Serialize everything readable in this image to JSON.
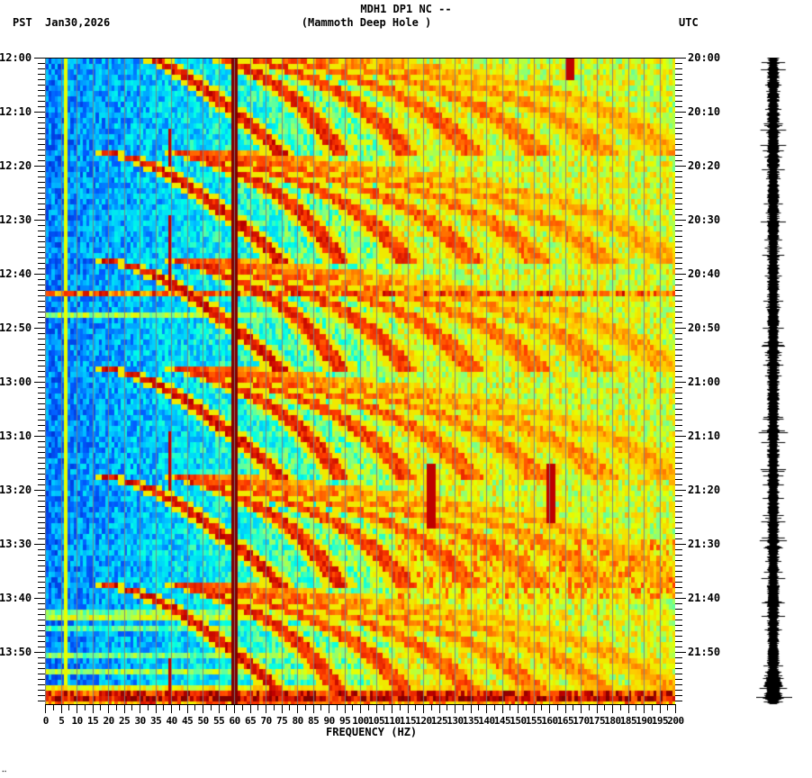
{
  "header": {
    "station_line": "MDH1 DP1 NC --",
    "site_line": "(Mammoth Deep Hole )",
    "left_timezone": "PST",
    "date": "Jan30,2026",
    "right_timezone": "UTC"
  },
  "footer_mark": "‥",
  "colors": {
    "low": "#0050ff",
    "mid_low": "#00e0ff",
    "mid": "#80ff80",
    "mid_high": "#ffff00",
    "high": "#ff6000",
    "peak": "#800000",
    "gridline": "#808080",
    "trace": "#000000"
  },
  "chart_data": {
    "type": "heatmap",
    "title": "MDH1 DP1 NC -- (Mammoth Deep Hole )",
    "subtitle": "Jan30,2026",
    "xlabel": "FREQUENCY (HZ)",
    "ylabel_left": "PST",
    "ylabel_right": "UTC",
    "x_range": [
      0,
      200
    ],
    "x_ticks": [
      0,
      5,
      10,
      15,
      20,
      25,
      30,
      35,
      40,
      45,
      50,
      55,
      60,
      65,
      70,
      75,
      80,
      85,
      90,
      95,
      100,
      105,
      110,
      115,
      120,
      125,
      130,
      135,
      140,
      145,
      150,
      155,
      160,
      165,
      170,
      175,
      180,
      185,
      190,
      195,
      200
    ],
    "y_ticks_left": [
      "12:00",
      "12:10",
      "12:20",
      "12:30",
      "12:40",
      "12:50",
      "13:00",
      "13:10",
      "13:20",
      "13:30",
      "13:40",
      "13:50"
    ],
    "y_ticks_right": [
      "20:00",
      "20:10",
      "20:20",
      "20:30",
      "20:40",
      "20:50",
      "21:00",
      "21:10",
      "21:20",
      "21:30",
      "21:40",
      "21:50"
    ],
    "time_span_minutes": 120,
    "colormap": "jet (blue = low power, dark red = high power)",
    "features": [
      {
        "type": "constant_line",
        "frequency_hz": 60,
        "description": "strong persistent 60 Hz power-line line (dark red)"
      },
      {
        "type": "constant_line",
        "frequency_hz": 6.5,
        "description": "weak persistent narrow line near 6-7 Hz (yellow)"
      },
      {
        "type": "sweeping_harmonics",
        "period_minutes": 20,
        "description": "repeating curved harmonic sweeps rising in frequency, cycles starting ~12:00, 12:20, 12:37, 12:57, 13:17, 13:37, 13:55"
      },
      {
        "type": "broadband_band",
        "time": "12:43",
        "description": "broadband horizontal stripe across all frequencies"
      },
      {
        "type": "broadband_band",
        "time": "13:42",
        "description": "broadband horizontal stripe"
      },
      {
        "type": "broadband_band",
        "time": "13:58",
        "description": "strong broadband stripe near end"
      },
      {
        "type": "transient",
        "frequency_hz": 122,
        "time": "13:17-13:22"
      },
      {
        "type": "transient",
        "frequency_hz": 160,
        "time": "13:14-13:22"
      },
      {
        "type": "transient",
        "frequency_hz": 167,
        "time": "12:00-12:04"
      }
    ]
  }
}
